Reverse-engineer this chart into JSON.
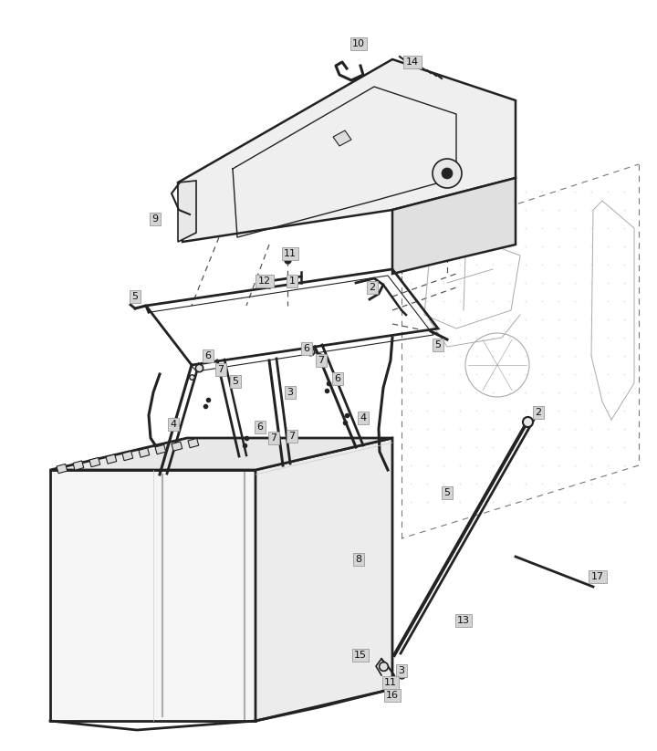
{
  "bg_color": "#ffffff",
  "line_color": "#222222",
  "label_bg": "#d4d4d4",
  "label_text": "#111111",
  "figsize": [
    7.2,
    8.23
  ],
  "dpi": 100
}
